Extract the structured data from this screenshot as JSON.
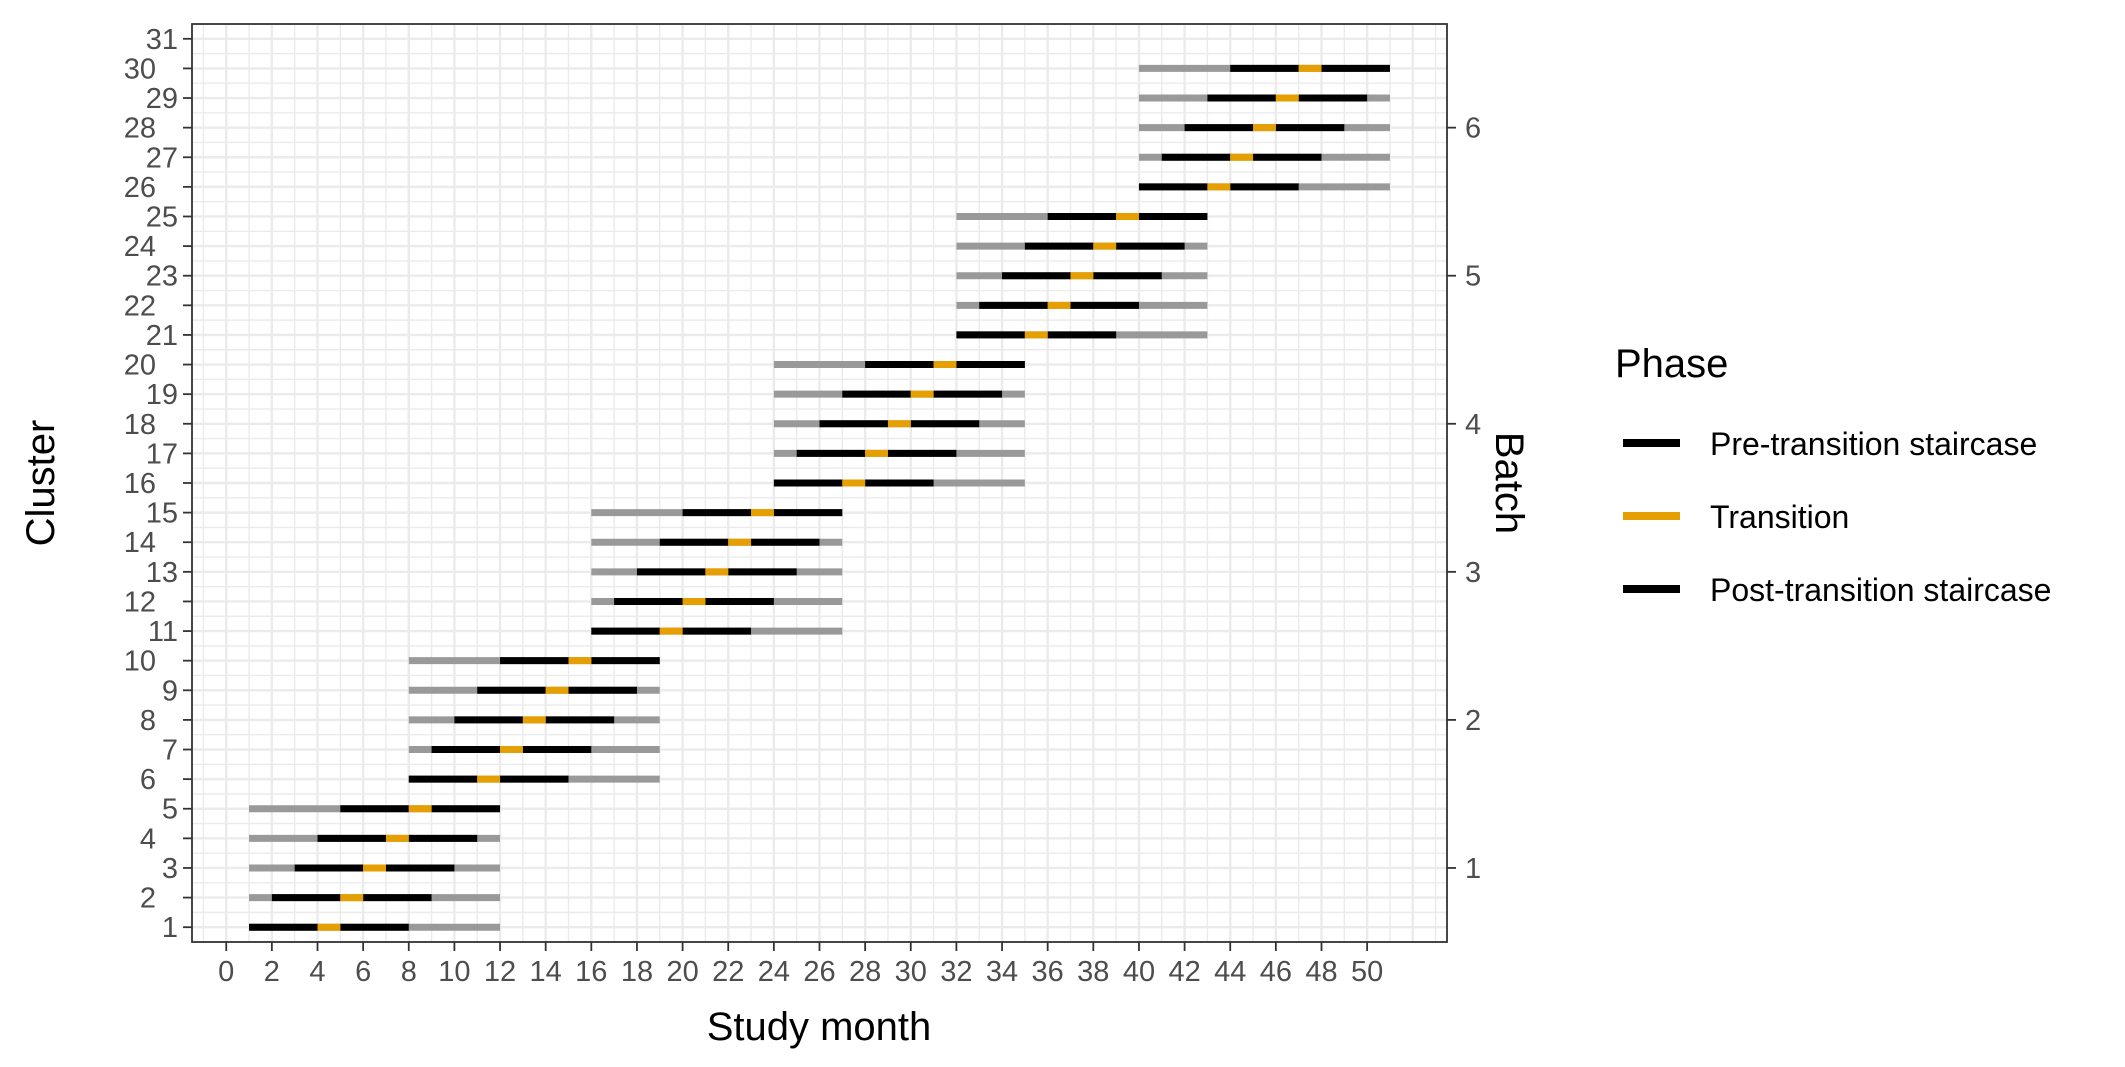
{
  "chart_data": {
    "type": "line",
    "xlabel": "Study month",
    "ylabel": "Cluster",
    "y2label": "Batch",
    "xlim": [
      -1.5,
      53.5
    ],
    "ylim": [
      0.5,
      31.5
    ],
    "x_ticks": [
      "0",
      "2",
      "4",
      "6",
      "8",
      "10",
      "12",
      "14",
      "16",
      "18",
      "20",
      "22",
      "24",
      "26",
      "28",
      "30",
      "32",
      "34",
      "36",
      "38",
      "40",
      "42",
      "44",
      "46",
      "48",
      "50"
    ],
    "y_ticks_left_lower": [
      "1",
      "3",
      "5",
      "7",
      "9",
      "11",
      "13",
      "15",
      "17",
      "19",
      "21",
      "23",
      "25",
      "27",
      "29",
      "31"
    ],
    "y_ticks_left_upper": [
      "2",
      "4",
      "6",
      "8",
      "10",
      "12",
      "14",
      "16",
      "18",
      "20",
      "22",
      "24",
      "26",
      "28",
      "30"
    ],
    "y2_ticks": [
      "1",
      "2",
      "3",
      "4",
      "5",
      "6"
    ],
    "grid": true,
    "colors": {
      "pre": "#000000",
      "transition": "#E69F00",
      "post": "#000000",
      "background_segment": "#999999",
      "grid": "#ebebeb"
    },
    "legend": {
      "title": "Phase",
      "placement": "right",
      "entries": [
        {
          "label": "Pre-transition staircase",
          "color": "#000000"
        },
        {
          "label": "Transition",
          "color": "#E69F00"
        },
        {
          "label": "Post-transition staircase",
          "color": "#000000"
        }
      ]
    },
    "batches": [
      {
        "batch": 1,
        "start": 1,
        "end": 12,
        "clusters": [
          1,
          2,
          3,
          4,
          5
        ]
      },
      {
        "batch": 2,
        "start": 8,
        "end": 19,
        "clusters": [
          6,
          7,
          8,
          9,
          10
        ]
      },
      {
        "batch": 3,
        "start": 16,
        "end": 27,
        "clusters": [
          11,
          12,
          13,
          14,
          15
        ]
      },
      {
        "batch": 4,
        "start": 24,
        "end": 35,
        "clusters": [
          16,
          17,
          18,
          19,
          20
        ]
      },
      {
        "batch": 5,
        "start": 32,
        "end": 43,
        "clusters": [
          21,
          22,
          23,
          24,
          25
        ]
      },
      {
        "batch": 6,
        "start": 40,
        "end": 51,
        "clusters": [
          26,
          27,
          28,
          29,
          30
        ]
      }
    ],
    "series": [
      {
        "cluster": 1,
        "pre": [
          1,
          4
        ],
        "transition": [
          4,
          5
        ],
        "post": [
          5,
          8
        ]
      },
      {
        "cluster": 2,
        "pre": [
          2,
          5
        ],
        "transition": [
          5,
          6
        ],
        "post": [
          6,
          9
        ]
      },
      {
        "cluster": 3,
        "pre": [
          3,
          6
        ],
        "transition": [
          6,
          7
        ],
        "post": [
          7,
          10
        ]
      },
      {
        "cluster": 4,
        "pre": [
          4,
          7
        ],
        "transition": [
          7,
          8
        ],
        "post": [
          8,
          11
        ]
      },
      {
        "cluster": 5,
        "pre": [
          5,
          8
        ],
        "transition": [
          8,
          9
        ],
        "post": [
          9,
          12
        ]
      },
      {
        "cluster": 6,
        "pre": [
          8,
          11
        ],
        "transition": [
          11,
          12
        ],
        "post": [
          12,
          15
        ]
      },
      {
        "cluster": 7,
        "pre": [
          9,
          12
        ],
        "transition": [
          12,
          13
        ],
        "post": [
          13,
          16
        ]
      },
      {
        "cluster": 8,
        "pre": [
          10,
          13
        ],
        "transition": [
          13,
          14
        ],
        "post": [
          14,
          17
        ]
      },
      {
        "cluster": 9,
        "pre": [
          11,
          14
        ],
        "transition": [
          14,
          15
        ],
        "post": [
          15,
          18
        ]
      },
      {
        "cluster": 10,
        "pre": [
          12,
          15
        ],
        "transition": [
          15,
          16
        ],
        "post": [
          16,
          19
        ]
      },
      {
        "cluster": 11,
        "pre": [
          16,
          19
        ],
        "transition": [
          19,
          20
        ],
        "post": [
          20,
          23
        ]
      },
      {
        "cluster": 12,
        "pre": [
          17,
          20
        ],
        "transition": [
          20,
          21
        ],
        "post": [
          21,
          24
        ]
      },
      {
        "cluster": 13,
        "pre": [
          18,
          21
        ],
        "transition": [
          21,
          22
        ],
        "post": [
          22,
          25
        ]
      },
      {
        "cluster": 14,
        "pre": [
          19,
          22
        ],
        "transition": [
          22,
          23
        ],
        "post": [
          23,
          26
        ]
      },
      {
        "cluster": 15,
        "pre": [
          20,
          23
        ],
        "transition": [
          23,
          24
        ],
        "post": [
          24,
          27
        ]
      },
      {
        "cluster": 16,
        "pre": [
          24,
          27
        ],
        "transition": [
          27,
          28
        ],
        "post": [
          28,
          31
        ]
      },
      {
        "cluster": 17,
        "pre": [
          25,
          28
        ],
        "transition": [
          28,
          29
        ],
        "post": [
          29,
          32
        ]
      },
      {
        "cluster": 18,
        "pre": [
          26,
          29
        ],
        "transition": [
          29,
          30
        ],
        "post": [
          30,
          33
        ]
      },
      {
        "cluster": 19,
        "pre": [
          27,
          30
        ],
        "transition": [
          30,
          31
        ],
        "post": [
          31,
          34
        ]
      },
      {
        "cluster": 20,
        "pre": [
          28,
          31
        ],
        "transition": [
          31,
          32
        ],
        "post": [
          32,
          35
        ]
      },
      {
        "cluster": 21,
        "pre": [
          32,
          35
        ],
        "transition": [
          35,
          36
        ],
        "post": [
          36,
          39
        ]
      },
      {
        "cluster": 22,
        "pre": [
          33,
          36
        ],
        "transition": [
          36,
          37
        ],
        "post": [
          37,
          40
        ]
      },
      {
        "cluster": 23,
        "pre": [
          34,
          37
        ],
        "transition": [
          37,
          38
        ],
        "post": [
          38,
          41
        ]
      },
      {
        "cluster": 24,
        "pre": [
          35,
          38
        ],
        "transition": [
          38,
          39
        ],
        "post": [
          39,
          42
        ]
      },
      {
        "cluster": 25,
        "pre": [
          36,
          39
        ],
        "transition": [
          39,
          40
        ],
        "post": [
          40,
          43
        ]
      },
      {
        "cluster": 26,
        "pre": [
          40,
          43
        ],
        "transition": [
          43,
          44
        ],
        "post": [
          44,
          47
        ]
      },
      {
        "cluster": 27,
        "pre": [
          41,
          44
        ],
        "transition": [
          44,
          45
        ],
        "post": [
          45,
          48
        ]
      },
      {
        "cluster": 28,
        "pre": [
          42,
          45
        ],
        "transition": [
          45,
          46
        ],
        "post": [
          46,
          49
        ]
      },
      {
        "cluster": 29,
        "pre": [
          43,
          46
        ],
        "transition": [
          46,
          47
        ],
        "post": [
          47,
          50
        ]
      },
      {
        "cluster": 30,
        "pre": [
          44,
          47
        ],
        "transition": [
          47,
          48
        ],
        "post": [
          48,
          51
        ]
      }
    ]
  }
}
